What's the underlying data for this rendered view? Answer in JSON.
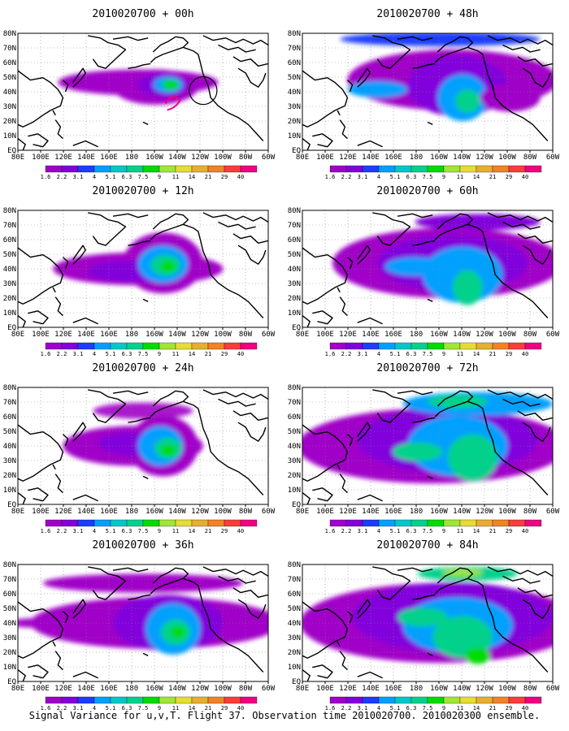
{
  "figure": {
    "caption": "Signal Variance for u,v,T. Flight 37. Observation time 2010020700. 2010020300 ensemble."
  },
  "colors": {
    "coastline": "#000000",
    "grid": "#888888",
    "background": "#ffffff"
  },
  "colorbar": {
    "labels": [
      "1.6",
      "2.2",
      "3.1",
      "4",
      "5.1",
      "6.3",
      "7.5",
      "9",
      "11",
      "14",
      "21",
      "29",
      "40"
    ],
    "colors": [
      "#a000c8",
      "#8200dc",
      "#1e3cff",
      "#00a0ff",
      "#00c8c8",
      "#00d28c",
      "#00dc00",
      "#a0e632",
      "#e6dc32",
      "#e6af2d",
      "#f08228",
      "#fa3c3c",
      "#f00082"
    ]
  },
  "chart_data": [
    {
      "type": "heatmap",
      "title": "2010020700 + 00h",
      "forecast_hour": 0,
      "field": "signal variance",
      "has_observation_circle": true,
      "xticks": [
        "80E",
        "100E",
        "120E",
        "140E",
        "160E",
        "180",
        "160W",
        "140W",
        "120W",
        "100W",
        "80W",
        "60W"
      ],
      "yticks": [
        "EQ",
        "10N",
        "20N",
        "30N",
        "40N",
        "50N",
        "60N",
        "70N",
        "80N"
      ],
      "xlim": [
        "80E",
        "60W"
      ],
      "ylim": [
        "EQ",
        "80N"
      ],
      "grid": "dotted",
      "peak_level": "29"
    },
    {
      "type": "heatmap",
      "title": "2010020700 + 12h",
      "forecast_hour": 12,
      "field": "signal variance",
      "xticks": [
        "80E",
        "100E",
        "120E",
        "140E",
        "160E",
        "180",
        "160W",
        "140W",
        "120W",
        "100W",
        "80W",
        "60W"
      ],
      "yticks": [
        "EQ",
        "10N",
        "20N",
        "30N",
        "40N",
        "50N",
        "60N",
        "70N",
        "80N"
      ],
      "xlim": [
        "80E",
        "60W"
      ],
      "ylim": [
        "EQ",
        "80N"
      ],
      "grid": "dotted",
      "peak_level": "9"
    },
    {
      "type": "heatmap",
      "title": "2010020700 + 24h",
      "forecast_hour": 24,
      "field": "signal variance",
      "xticks": [
        "80E",
        "100E",
        "120E",
        "140E",
        "160E",
        "180",
        "160W",
        "140W",
        "120W",
        "100W",
        "80W",
        "60W"
      ],
      "yticks": [
        "EQ",
        "10N",
        "20N",
        "30N",
        "40N",
        "50N",
        "60N",
        "70N",
        "80N"
      ],
      "xlim": [
        "80E",
        "60W"
      ],
      "ylim": [
        "EQ",
        "80N"
      ],
      "grid": "dotted",
      "peak_level": "9"
    },
    {
      "type": "heatmap",
      "title": "2010020700 + 36h",
      "forecast_hour": 36,
      "field": "signal variance",
      "xticks": [
        "80E",
        "100E",
        "120E",
        "140E",
        "160E",
        "180",
        "160W",
        "140W",
        "120W",
        "100W",
        "80W",
        "60W"
      ],
      "yticks": [
        "EQ",
        "10N",
        "20N",
        "30N",
        "40N",
        "50N",
        "60N",
        "70N",
        "80N"
      ],
      "xlim": [
        "80E",
        "60W"
      ],
      "ylim": [
        "EQ",
        "80N"
      ],
      "grid": "dotted",
      "peak_level": "9"
    },
    {
      "type": "heatmap",
      "title": "2010020700 + 48h",
      "forecast_hour": 48,
      "field": "signal variance",
      "xticks": [
        "80E",
        "100E",
        "120E",
        "140E",
        "160E",
        "180",
        "160W",
        "140W",
        "120W",
        "100W",
        "80W",
        "60W"
      ],
      "yticks": [
        "EQ",
        "10N",
        "20N",
        "30N",
        "40N",
        "50N",
        "60N",
        "70N",
        "80N"
      ],
      "xlim": [
        "80E",
        "60W"
      ],
      "ylim": [
        "EQ",
        "80N"
      ],
      "grid": "dotted",
      "peak_level": "7.5"
    },
    {
      "type": "heatmap",
      "title": "2010020700 + 60h",
      "forecast_hour": 60,
      "field": "signal variance",
      "xticks": [
        "80E",
        "100E",
        "120E",
        "140E",
        "160E",
        "180",
        "160W",
        "140W",
        "120W",
        "100W",
        "80W",
        "60W"
      ],
      "yticks": [
        "EQ",
        "10N",
        "20N",
        "30N",
        "40N",
        "50N",
        "60N",
        "70N",
        "80N"
      ],
      "xlim": [
        "80E",
        "60W"
      ],
      "ylim": [
        "EQ",
        "80N"
      ],
      "grid": "dotted",
      "peak_level": "7.5"
    },
    {
      "type": "heatmap",
      "title": "2010020700 + 72h",
      "forecast_hour": 72,
      "field": "signal variance",
      "xticks": [
        "80E",
        "100E",
        "120E",
        "140E",
        "160E",
        "180",
        "160W",
        "140W",
        "120W",
        "100W",
        "80W",
        "60W"
      ],
      "yticks": [
        "EQ",
        "10N",
        "20N",
        "30N",
        "40N",
        "50N",
        "60N",
        "70N",
        "80N"
      ],
      "xlim": [
        "80E",
        "60W"
      ],
      "ylim": [
        "EQ",
        "80N"
      ],
      "grid": "dotted",
      "peak_level": "7.5"
    },
    {
      "type": "heatmap",
      "title": "2010020700 + 84h",
      "forecast_hour": 84,
      "field": "signal variance",
      "xticks": [
        "80E",
        "100E",
        "120E",
        "140E",
        "160E",
        "180",
        "160W",
        "140W",
        "120W",
        "100W",
        "80W",
        "60W"
      ],
      "yticks": [
        "EQ",
        "10N",
        "20N",
        "30N",
        "40N",
        "50N",
        "60N",
        "70N",
        "80N"
      ],
      "xlim": [
        "80E",
        "60W"
      ],
      "ylim": [
        "EQ",
        "80N"
      ],
      "grid": "dotted",
      "peak_level": "9"
    }
  ]
}
